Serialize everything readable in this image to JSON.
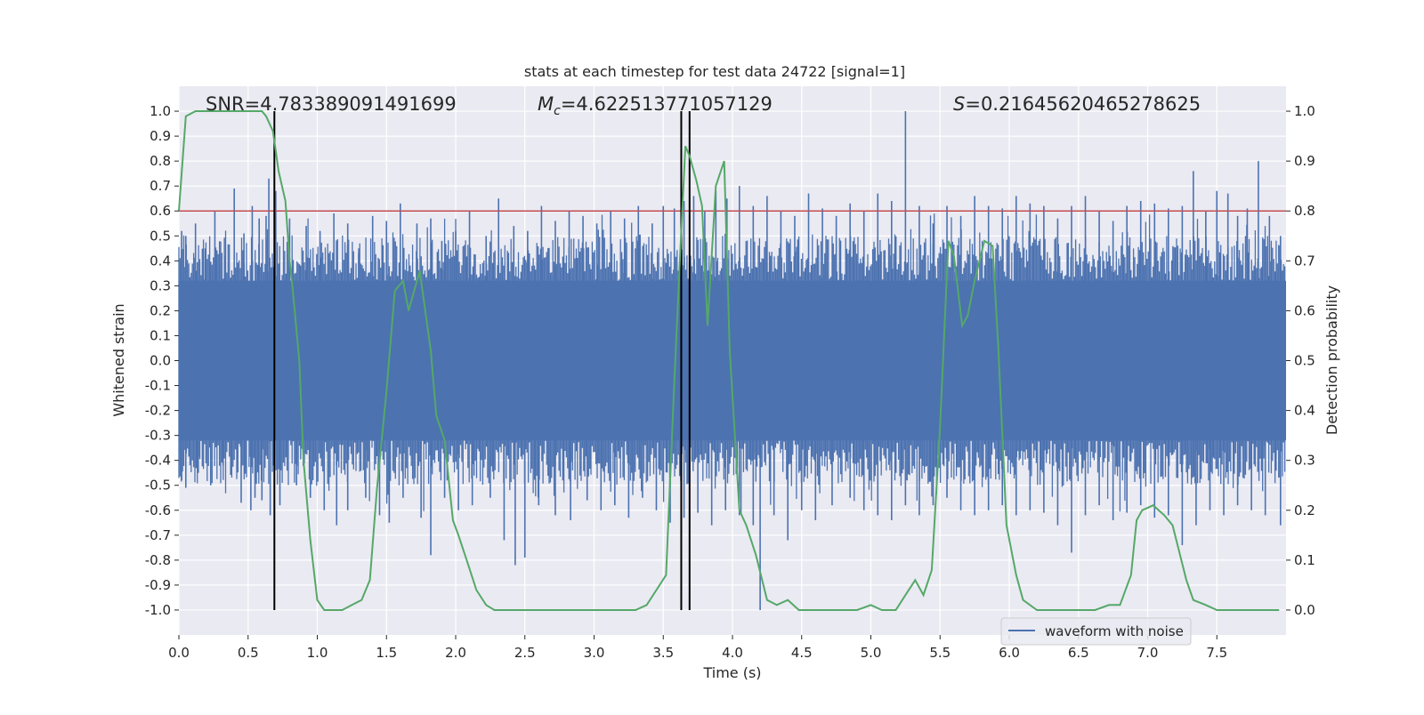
{
  "chart_data": {
    "type": "line",
    "title": "stats at each timestep for test data 24722 [signal=1]",
    "xlabel": "Time (s)",
    "ylabel": "Whitened strain",
    "y2label": "Detection probability",
    "xlim": [
      0.0,
      8.0
    ],
    "ylim": [
      -1.1,
      1.1
    ],
    "y2lim": [
      -0.05,
      1.05
    ],
    "xticks": [
      "0.0",
      "0.5",
      "1.0",
      "1.5",
      "2.0",
      "2.5",
      "3.0",
      "3.5",
      "4.0",
      "4.5",
      "5.0",
      "5.5",
      "6.0",
      "6.5",
      "7.0",
      "7.5"
    ],
    "xtick_values": [
      0,
      0.5,
      1,
      1.5,
      2,
      2.5,
      3,
      3.5,
      4,
      4.5,
      5,
      5.5,
      6,
      6.5,
      7,
      7.5
    ],
    "yticks": [
      "1.0",
      "0.9",
      "0.8",
      "0.7",
      "0.6",
      "0.5",
      "0.4",
      "0.3",
      "0.2",
      "0.1",
      "0.0",
      "-0.1",
      "-0.2",
      "-0.3",
      "-0.4",
      "-0.5",
      "-0.6",
      "-0.7",
      "-0.8",
      "-0.9",
      "-1.0"
    ],
    "ytick_values": [
      1,
      0.9,
      0.8,
      0.7,
      0.6,
      0.5,
      0.4,
      0.3,
      0.2,
      0.1,
      0,
      -0.1,
      -0.2,
      -0.3,
      -0.4,
      -0.5,
      -0.6,
      -0.7,
      -0.8,
      -0.9,
      -1.0
    ],
    "y2ticks": [
      "1.0",
      "0.9",
      "0.8",
      "0.7",
      "0.6",
      "0.5",
      "0.4",
      "0.3",
      "0.2",
      "0.1",
      "0.0"
    ],
    "y2tick_values": [
      1,
      0.9,
      0.8,
      0.7,
      0.6,
      0.5,
      0.4,
      0.3,
      0.2,
      0.1,
      0
    ],
    "annotations": {
      "snr": "SNR=4.783389091491699",
      "mc": "=4.622513771057129",
      "mc_symbol": "M",
      "mc_sub": "c",
      "s": "=0.21645620465278625",
      "s_symbol": "S"
    },
    "legend": {
      "label": "waveform with noise",
      "placement": "lower-right"
    },
    "threshold": {
      "value": 0.8,
      "axis": "y2",
      "color": "#c44e52"
    },
    "vlines": [
      0.69,
      3.63,
      3.69
    ],
    "waveform": {
      "name": "waveform with noise",
      "color": "#4c72b0",
      "dense_envelope": [
        -0.32,
        0.32
      ],
      "peaks": [
        {
          "t": 0.02,
          "v": 0.52
        },
        {
          "t": 0.05,
          "v": 0.5
        },
        {
          "t": 0.12,
          "v": 0.55
        },
        {
          "t": 0.19,
          "v": 0.45
        },
        {
          "t": 0.26,
          "v": 0.6
        },
        {
          "t": 0.33,
          "v": 0.42
        },
        {
          "t": 0.4,
          "v": 0.69
        },
        {
          "t": 0.47,
          "v": 0.51
        },
        {
          "t": 0.53,
          "v": 0.62
        },
        {
          "t": 0.58,
          "v": 0.57
        },
        {
          "t": 0.63,
          "v": 0.58
        },
        {
          "t": 0.65,
          "v": 0.73
        },
        {
          "t": 0.7,
          "v": 0.68
        },
        {
          "t": 0.8,
          "v": 0.57
        },
        {
          "t": 0.92,
          "v": 0.54
        },
        {
          "t": 1.02,
          "v": 0.52
        },
        {
          "t": 1.12,
          "v": 0.59
        },
        {
          "t": 1.22,
          "v": 0.55
        },
        {
          "t": 1.3,
          "v": 0.45
        },
        {
          "t": 1.4,
          "v": 0.58
        },
        {
          "t": 1.5,
          "v": 0.56
        },
        {
          "t": 1.6,
          "v": 0.63
        },
        {
          "t": 1.72,
          "v": 0.55
        },
        {
          "t": 1.82,
          "v": 0.57
        },
        {
          "t": 1.9,
          "v": 0.48
        },
        {
          "t": 2.0,
          "v": 0.52
        },
        {
          "t": 2.1,
          "v": 0.6
        },
        {
          "t": 2.22,
          "v": 0.5
        },
        {
          "t": 2.31,
          "v": 0.65
        },
        {
          "t": 2.42,
          "v": 0.54
        },
        {
          "t": 2.52,
          "v": 0.52
        },
        {
          "t": 2.62,
          "v": 0.62
        },
        {
          "t": 2.72,
          "v": 0.56
        },
        {
          "t": 2.82,
          "v": 0.6
        },
        {
          "t": 2.92,
          "v": 0.58
        },
        {
          "t": 3.02,
          "v": 0.55
        },
        {
          "t": 3.12,
          "v": 0.6
        },
        {
          "t": 3.22,
          "v": 0.57
        },
        {
          "t": 3.32,
          "v": 0.62
        },
        {
          "t": 3.42,
          "v": 0.55
        },
        {
          "t": 3.5,
          "v": 0.62
        },
        {
          "t": 3.58,
          "v": 0.61
        },
        {
          "t": 3.65,
          "v": 0.64
        },
        {
          "t": 3.72,
          "v": 0.66
        },
        {
          "t": 3.8,
          "v": 0.6
        },
        {
          "t": 3.88,
          "v": 0.68
        },
        {
          "t": 3.96,
          "v": 0.65
        },
        {
          "t": 4.05,
          "v": 0.7
        },
        {
          "t": 4.15,
          "v": 0.62
        },
        {
          "t": 4.25,
          "v": 0.66
        },
        {
          "t": 4.35,
          "v": 0.6
        },
        {
          "t": 4.45,
          "v": 0.58
        },
        {
          "t": 4.55,
          "v": 0.67
        },
        {
          "t": 4.65,
          "v": 0.61
        },
        {
          "t": 4.75,
          "v": 0.58
        },
        {
          "t": 4.85,
          "v": 0.63
        },
        {
          "t": 4.95,
          "v": 0.6
        },
        {
          "t": 5.05,
          "v": 0.67
        },
        {
          "t": 5.15,
          "v": 0.64
        },
        {
          "t": 5.25,
          "v": 1.0
        },
        {
          "t": 5.35,
          "v": 0.62
        },
        {
          "t": 5.45,
          "v": 0.55
        },
        {
          "t": 5.55,
          "v": 0.62
        },
        {
          "t": 5.65,
          "v": 0.58
        },
        {
          "t": 5.75,
          "v": 0.66
        },
        {
          "t": 5.85,
          "v": 0.62
        },
        {
          "t": 5.95,
          "v": 0.61
        },
        {
          "t": 6.05,
          "v": 0.66
        },
        {
          "t": 6.15,
          "v": 0.63
        },
        {
          "t": 6.25,
          "v": 0.62
        },
        {
          "t": 6.35,
          "v": 0.57
        },
        {
          "t": 6.45,
          "v": 0.62
        },
        {
          "t": 6.55,
          "v": 0.66
        },
        {
          "t": 6.65,
          "v": 0.6
        },
        {
          "t": 6.75,
          "v": 0.56
        },
        {
          "t": 6.85,
          "v": 0.62
        },
        {
          "t": 6.95,
          "v": 0.64
        },
        {
          "t": 7.05,
          "v": 0.63
        },
        {
          "t": 7.15,
          "v": 0.61
        },
        {
          "t": 7.25,
          "v": 0.62
        },
        {
          "t": 7.33,
          "v": 0.76
        },
        {
          "t": 7.42,
          "v": 0.6
        },
        {
          "t": 7.5,
          "v": 0.68
        },
        {
          "t": 7.58,
          "v": 0.67
        },
        {
          "t": 7.65,
          "v": 0.58
        },
        {
          "t": 7.72,
          "v": 0.61
        },
        {
          "t": 7.8,
          "v": 0.8
        },
        {
          "t": 7.88,
          "v": 0.58
        },
        {
          "t": 7.96,
          "v": 0.5
        }
      ],
      "troughs": [
        {
          "t": 0.02,
          "v": -0.48
        },
        {
          "t": 0.05,
          "v": -0.51
        },
        {
          "t": 0.14,
          "v": -0.45
        },
        {
          "t": 0.23,
          "v": -0.5
        },
        {
          "t": 0.32,
          "v": -0.42
        },
        {
          "t": 0.45,
          "v": -0.57
        },
        {
          "t": 0.52,
          "v": -0.6
        },
        {
          "t": 0.55,
          "v": -0.55
        },
        {
          "t": 0.6,
          "v": -0.56
        },
        {
          "t": 0.66,
          "v": -0.62
        },
        {
          "t": 0.73,
          "v": -0.58
        },
        {
          "t": 0.85,
          "v": -0.5
        },
        {
          "t": 0.95,
          "v": -0.55
        },
        {
          "t": 1.05,
          "v": -0.6
        },
        {
          "t": 1.14,
          "v": -0.66
        },
        {
          "t": 1.22,
          "v": -0.6
        },
        {
          "t": 1.35,
          "v": -0.55
        },
        {
          "t": 1.45,
          "v": -0.62
        },
        {
          "t": 1.52,
          "v": -0.65
        },
        {
          "t": 1.62,
          "v": -0.55
        },
        {
          "t": 1.75,
          "v": -0.63
        },
        {
          "t": 1.82,
          "v": -0.78
        },
        {
          "t": 1.92,
          "v": -0.55
        },
        {
          "t": 2.02,
          "v": -0.6
        },
        {
          "t": 2.12,
          "v": -0.58
        },
        {
          "t": 2.25,
          "v": -0.55
        },
        {
          "t": 2.35,
          "v": -0.72
        },
        {
          "t": 2.43,
          "v": -0.82
        },
        {
          "t": 2.5,
          "v": -0.79
        },
        {
          "t": 2.6,
          "v": -0.58
        },
        {
          "t": 2.72,
          "v": -0.62
        },
        {
          "t": 2.83,
          "v": -0.64
        },
        {
          "t": 2.95,
          "v": -0.56
        },
        {
          "t": 3.05,
          "v": -0.6
        },
        {
          "t": 3.15,
          "v": -0.58
        },
        {
          "t": 3.25,
          "v": -0.63
        },
        {
          "t": 3.35,
          "v": -0.55
        },
        {
          "t": 3.45,
          "v": -0.6
        },
        {
          "t": 3.55,
          "v": -0.65
        },
        {
          "t": 3.65,
          "v": -0.63
        },
        {
          "t": 3.75,
          "v": -0.61
        },
        {
          "t": 3.85,
          "v": -0.66
        },
        {
          "t": 3.95,
          "v": -0.6
        },
        {
          "t": 4.05,
          "v": -0.62
        },
        {
          "t": 4.15,
          "v": -0.66
        },
        {
          "t": 4.2,
          "v": -1.0
        },
        {
          "t": 4.3,
          "v": -0.62
        },
        {
          "t": 4.4,
          "v": -0.72
        },
        {
          "t": 4.5,
          "v": -0.6
        },
        {
          "t": 4.6,
          "v": -0.64
        },
        {
          "t": 4.72,
          "v": -0.58
        },
        {
          "t": 4.85,
          "v": -0.55
        },
        {
          "t": 4.95,
          "v": -0.6
        },
        {
          "t": 5.05,
          "v": -0.62
        },
        {
          "t": 5.15,
          "v": -0.64
        },
        {
          "t": 5.25,
          "v": -0.58
        },
        {
          "t": 5.35,
          "v": -0.62
        },
        {
          "t": 5.45,
          "v": -0.58
        },
        {
          "t": 5.55,
          "v": -0.55
        },
        {
          "t": 5.65,
          "v": -0.6
        },
        {
          "t": 5.75,
          "v": -0.62
        },
        {
          "t": 5.85,
          "v": -0.6
        },
        {
          "t": 5.95,
          "v": -0.58
        },
        {
          "t": 6.05,
          "v": -0.62
        },
        {
          "t": 6.15,
          "v": -0.6
        },
        {
          "t": 6.25,
          "v": -0.61
        },
        {
          "t": 6.35,
          "v": -0.66
        },
        {
          "t": 6.45,
          "v": -0.77
        },
        {
          "t": 6.55,
          "v": -0.62
        },
        {
          "t": 6.65,
          "v": -0.58
        },
        {
          "t": 6.75,
          "v": -0.64
        },
        {
          "t": 6.85,
          "v": -0.61
        },
        {
          "t": 6.95,
          "v": -0.58
        },
        {
          "t": 7.05,
          "v": -0.63
        },
        {
          "t": 7.15,
          "v": -0.62
        },
        {
          "t": 7.25,
          "v": -0.74
        },
        {
          "t": 7.35,
          "v": -0.66
        },
        {
          "t": 7.45,
          "v": -0.6
        },
        {
          "t": 7.55,
          "v": -0.62
        },
        {
          "t": 7.65,
          "v": -0.58
        },
        {
          "t": 7.75,
          "v": -0.6
        },
        {
          "t": 7.85,
          "v": -0.62
        },
        {
          "t": 7.96,
          "v": -0.66
        }
      ]
    },
    "probability": {
      "name": "Detection probability",
      "color": "#55a868",
      "x": [
        0.0,
        0.05,
        0.12,
        0.2,
        0.3,
        0.4,
        0.5,
        0.6,
        0.63,
        0.68,
        0.72,
        0.77,
        0.8,
        0.82,
        0.87,
        0.9,
        0.95,
        1.0,
        1.05,
        1.12,
        1.18,
        1.25,
        1.32,
        1.38,
        1.43,
        1.5,
        1.56,
        1.62,
        1.66,
        1.74,
        1.82,
        1.86,
        1.92,
        1.98,
        2.02,
        2.08,
        2.15,
        2.22,
        2.28,
        2.38,
        2.5,
        2.65,
        2.8,
        3.0,
        3.15,
        3.3,
        3.38,
        3.45,
        3.52,
        3.58,
        3.62,
        3.66,
        3.69,
        3.74,
        3.78,
        3.82,
        3.88,
        3.94,
        3.98,
        4.05,
        4.1,
        4.17,
        4.25,
        4.32,
        4.4,
        4.48,
        4.6,
        4.7,
        4.8,
        4.9,
        5.0,
        5.08,
        5.18,
        5.25,
        5.32,
        5.38,
        5.44,
        5.5,
        5.56,
        5.6,
        5.66,
        5.7,
        5.75,
        5.82,
        5.88,
        5.92,
        5.98,
        6.05,
        6.1,
        6.2,
        6.35,
        6.5,
        6.62,
        6.72,
        6.8,
        6.88,
        6.92,
        6.96,
        7.04,
        7.12,
        7.18,
        7.28,
        7.33,
        7.42,
        7.5,
        7.62,
        7.8,
        7.95
      ],
      "y": [
        0.8,
        0.99,
        1.0,
        1.0,
        1.0,
        1.0,
        1.0,
        1.0,
        0.99,
        0.96,
        0.88,
        0.82,
        0.7,
        0.65,
        0.5,
        0.3,
        0.14,
        0.02,
        0.0,
        0.0,
        0.0,
        0.01,
        0.02,
        0.06,
        0.24,
        0.44,
        0.64,
        0.66,
        0.6,
        0.68,
        0.52,
        0.39,
        0.34,
        0.18,
        0.15,
        0.1,
        0.04,
        0.01,
        0.0,
        0.0,
        0.0,
        0.0,
        0.0,
        0.0,
        0.0,
        0.0,
        0.01,
        0.04,
        0.07,
        0.46,
        0.7,
        0.93,
        0.91,
        0.86,
        0.81,
        0.57,
        0.85,
        0.9,
        0.52,
        0.2,
        0.17,
        0.11,
        0.02,
        0.01,
        0.02,
        0.0,
        0.0,
        0.0,
        0.0,
        0.0,
        0.01,
        0.0,
        0.0,
        0.03,
        0.06,
        0.03,
        0.08,
        0.37,
        0.74,
        0.71,
        0.57,
        0.59,
        0.66,
        0.74,
        0.73,
        0.53,
        0.17,
        0.07,
        0.02,
        0.0,
        0.0,
        0.0,
        0.0,
        0.01,
        0.01,
        0.07,
        0.18,
        0.2,
        0.21,
        0.19,
        0.17,
        0.06,
        0.02,
        0.01,
        0.0,
        0.0,
        0.0,
        0.0
      ]
    }
  }
}
